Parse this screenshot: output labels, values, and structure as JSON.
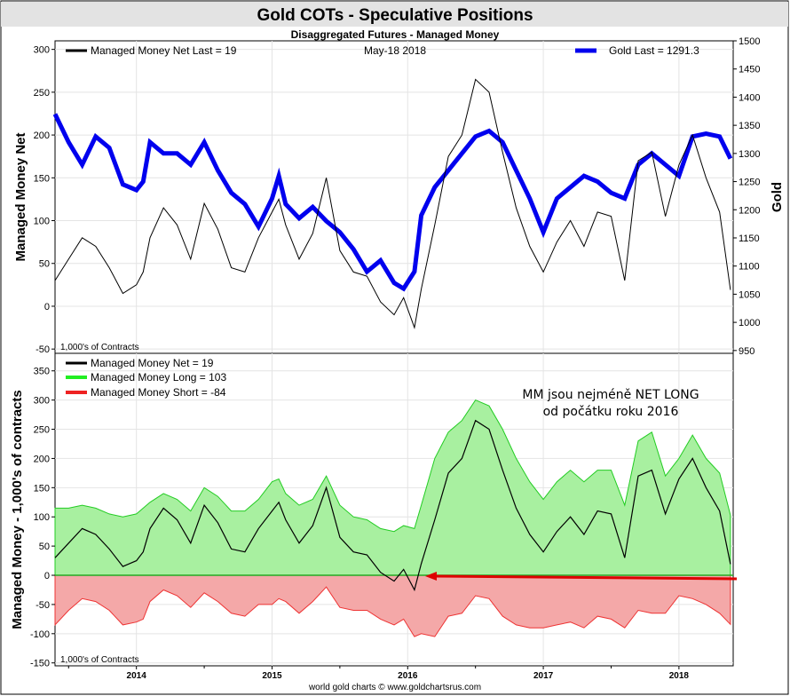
{
  "header": {
    "title": "Gold COTs - Speculative Positions",
    "subtitle": "Disaggregated Futures - Managed Money"
  },
  "footer": {
    "credit": "world gold charts © www.goldchartsrus.com"
  },
  "colors": {
    "net": "#000000",
    "gold": "#0000ee",
    "long_line": "#22cc22",
    "long_fill": "#a8f0a0",
    "short_line": "#ee3333",
    "short_fill": "#f4a8a8",
    "arrow": "#dd0000"
  },
  "chart_data": [
    {
      "type": "line",
      "panel": "top",
      "legend": {
        "net": "Managed Money Net   Last = 19",
        "date": "May-18  2018",
        "gold": "Gold Last = 1291.3"
      },
      "ylabel_left": "Managed Money Net",
      "ylabel_right": "Gold",
      "unit_note": "1,000's of Contracts",
      "y_left_ticks": [
        "300",
        "250",
        "200",
        "150",
        "100",
        "50",
        "0",
        "-50"
      ],
      "y_right_ticks": [
        "1500",
        "1450",
        "1400",
        "1350",
        "1300",
        "1250",
        "1200",
        "1150",
        "1100",
        "1050",
        "1000",
        "950"
      ],
      "ylim_left": [
        -55,
        310
      ],
      "ylim_right": [
        945,
        1500
      ],
      "x": [
        2013.4,
        2013.5,
        2013.6,
        2013.7,
        2013.8,
        2013.9,
        2014.0,
        2014.05,
        2014.1,
        2014.2,
        2014.3,
        2014.4,
        2014.5,
        2014.6,
        2014.7,
        2014.8,
        2014.9,
        2015.0,
        2015.05,
        2015.1,
        2015.2,
        2015.3,
        2015.4,
        2015.5,
        2015.6,
        2015.7,
        2015.8,
        2015.9,
        2015.97,
        2016.05,
        2016.1,
        2016.2,
        2016.3,
        2016.4,
        2016.5,
        2016.6,
        2016.7,
        2016.8,
        2016.9,
        2017.0,
        2017.1,
        2017.2,
        2017.3,
        2017.4,
        2017.5,
        2017.6,
        2017.7,
        2017.8,
        2017.9,
        2018.0,
        2018.1,
        2018.2,
        2018.3,
        2018.38
      ],
      "series": [
        {
          "name": "Managed Money Net",
          "axis": "left",
          "values": [
            30,
            55,
            80,
            70,
            45,
            15,
            25,
            40,
            80,
            115,
            95,
            55,
            120,
            90,
            45,
            40,
            80,
            110,
            125,
            95,
            55,
            85,
            150,
            65,
            40,
            35,
            5,
            -10,
            10,
            -25,
            20,
            95,
            175,
            200,
            265,
            250,
            180,
            115,
            70,
            40,
            75,
            100,
            70,
            110,
            105,
            30,
            170,
            180,
            105,
            165,
            200,
            150,
            110,
            19
          ]
        },
        {
          "name": "Gold",
          "axis": "right",
          "values": [
            1370,
            1320,
            1280,
            1330,
            1310,
            1245,
            1235,
            1250,
            1320,
            1300,
            1300,
            1280,
            1320,
            1270,
            1230,
            1210,
            1170,
            1220,
            1260,
            1210,
            1185,
            1205,
            1180,
            1160,
            1130,
            1090,
            1110,
            1070,
            1060,
            1090,
            1190,
            1240,
            1270,
            1300,
            1330,
            1340,
            1320,
            1270,
            1220,
            1160,
            1220,
            1240,
            1260,
            1250,
            1230,
            1220,
            1280,
            1300,
            1280,
            1260,
            1330,
            1335,
            1330,
            1291
          ]
        }
      ]
    },
    {
      "type": "area",
      "panel": "bottom",
      "legend": {
        "net": "Managed Money Net     = 19",
        "long": "Managed Money Long   = 103",
        "short": "Managed Money Short  = -84"
      },
      "ylabel": "Managed Money - 1,000's of contracts",
      "unit_note": "1,000's of Contracts",
      "annotation": [
        "MM jsou nejméně NET LONG",
        "od počátku roku 2016"
      ],
      "y_ticks": [
        "350",
        "300",
        "250",
        "200",
        "150",
        "100",
        "50",
        "0",
        "-50",
        "-100",
        "-150"
      ],
      "ylim": [
        -155,
        380
      ],
      "x_ticks": [
        "2014",
        "2015",
        "2016",
        "2017",
        "2018"
      ],
      "x_tick_values": [
        2014.0,
        2015.0,
        2016.0,
        2017.0,
        2018.0
      ],
      "xlim": [
        2013.4,
        2018.4
      ],
      "x": [
        2013.4,
        2013.5,
        2013.6,
        2013.7,
        2013.8,
        2013.9,
        2014.0,
        2014.05,
        2014.1,
        2014.2,
        2014.3,
        2014.4,
        2014.5,
        2014.6,
        2014.7,
        2014.8,
        2014.9,
        2015.0,
        2015.05,
        2015.1,
        2015.2,
        2015.3,
        2015.4,
        2015.5,
        2015.6,
        2015.7,
        2015.8,
        2015.9,
        2015.97,
        2016.05,
        2016.1,
        2016.2,
        2016.3,
        2016.4,
        2016.5,
        2016.6,
        2016.7,
        2016.8,
        2016.9,
        2017.0,
        2017.1,
        2017.2,
        2017.3,
        2017.4,
        2017.5,
        2017.6,
        2017.7,
        2017.8,
        2017.9,
        2018.0,
        2018.1,
        2018.2,
        2018.3,
        2018.38
      ],
      "series": [
        {
          "name": "Managed Money Long",
          "values": [
            115,
            115,
            120,
            115,
            105,
            100,
            105,
            115,
            125,
            140,
            130,
            110,
            150,
            135,
            110,
            110,
            130,
            160,
            165,
            140,
            120,
            130,
            170,
            120,
            100,
            95,
            80,
            75,
            85,
            80,
            120,
            200,
            245,
            265,
            300,
            290,
            250,
            200,
            160,
            130,
            160,
            180,
            160,
            180,
            180,
            120,
            230,
            245,
            170,
            200,
            240,
            200,
            175,
            103
          ]
        },
        {
          "name": "Managed Money Short",
          "values": [
            -85,
            -60,
            -40,
            -45,
            -60,
            -85,
            -80,
            -75,
            -45,
            -25,
            -35,
            -55,
            -30,
            -45,
            -65,
            -70,
            -50,
            -50,
            -40,
            -45,
            -65,
            -45,
            -20,
            -55,
            -60,
            -60,
            -75,
            -85,
            -75,
            -105,
            -100,
            -105,
            -70,
            -65,
            -35,
            -40,
            -70,
            -85,
            -90,
            -90,
            -85,
            -80,
            -90,
            -70,
            -75,
            -90,
            -60,
            -65,
            -65,
            -35,
            -40,
            -50,
            -65,
            -84
          ]
        },
        {
          "name": "Managed Money Net",
          "values": [
            30,
            55,
            80,
            70,
            45,
            15,
            25,
            40,
            80,
            115,
            95,
            55,
            120,
            90,
            45,
            40,
            80,
            110,
            125,
            95,
            55,
            85,
            150,
            65,
            40,
            35,
            5,
            -10,
            10,
            -25,
            20,
            95,
            175,
            200,
            265,
            250,
            180,
            115,
            70,
            40,
            75,
            100,
            70,
            110,
            105,
            30,
            170,
            180,
            105,
            165,
            200,
            150,
            110,
            19
          ]
        }
      ]
    }
  ]
}
